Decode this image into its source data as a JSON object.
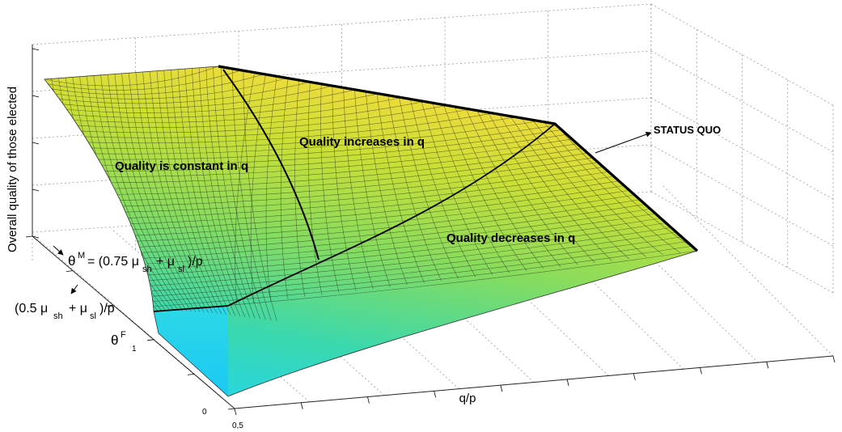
{
  "chart_data": {
    "type": "surface",
    "title": "",
    "zlabel": "Overall quality of those elected",
    "xlabel": "q/p",
    "ylabel": "θF",
    "x_tick_labels": [
      "0,5"
    ],
    "y_tick_labels": [
      "0",
      "1"
    ],
    "grid": true,
    "colormap": [
      "#22d4f0",
      "#3cd7b0",
      "#7ddc66",
      "#c4de38",
      "#ecdc3a"
    ],
    "annotations": {
      "theta_m": "θM = (0.75 μsh + μsl)/p",
      "half": "(0.5 μsh + μsl)/p",
      "status_quo": "STATUS QUO"
    },
    "region_labels": [
      "Quality is constant in q",
      "Quality increases in q",
      "Quality decreases in q"
    ]
  }
}
